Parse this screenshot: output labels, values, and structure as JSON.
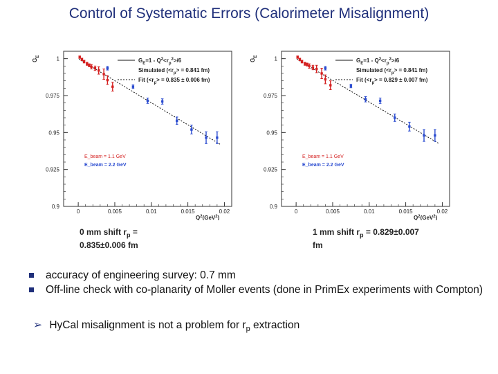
{
  "title": "Control of Systematic Errors (Calorimeter Misalignment)",
  "chart_data": [
    {
      "type": "scatter",
      "ylabel": "G_E^p",
      "xlabel": "Q²(GeV²)",
      "xlim": [
        -0.002,
        0.021
      ],
      "ylim": [
        0.9,
        1.005
      ],
      "xticks": [
        "0",
        "0.005",
        "0.01",
        "0.015",
        "0.02"
      ],
      "yticks": [
        "0.9",
        "0.925",
        "0.95",
        "0.975",
        "1"
      ],
      "legend": [
        "G_E^p=1 - Q²<r_p²>/6",
        "Simulated (<r_p> = 0.841 fm)",
        "Fit (<r_p> = 0.835 ± 0.006 fm)"
      ],
      "beam_labels": [
        "E_beam = 1.1 GeV",
        "E_beam = 2.2 GeV"
      ],
      "fit_rp": 0.835,
      "series": [
        {
          "name": "E_beam = 1.1 GeV",
          "color": "#d42020",
          "x": [
            0.0002,
            0.0005,
            0.0008,
            0.0012,
            0.0015,
            0.0018,
            0.0023,
            0.0028,
            0.0035,
            0.004,
            0.0047
          ],
          "y": [
            1.001,
            0.9995,
            0.998,
            0.9965,
            0.9955,
            0.9945,
            0.9935,
            0.992,
            0.9895,
            0.9855,
            0.981
          ],
          "err": [
            0.0008,
            0.0008,
            0.0009,
            0.001,
            0.001,
            0.0015,
            0.0015,
            0.0025,
            0.0035,
            0.003,
            0.003
          ]
        },
        {
          "name": "E_beam = 2.2 GeV",
          "color": "#2a4bd0",
          "x": [
            0.004,
            0.0075,
            0.0095,
            0.0115,
            0.0135,
            0.0155,
            0.0175,
            0.019
          ],
          "y": [
            0.9935,
            0.981,
            0.9715,
            0.971,
            0.958,
            0.952,
            0.9465,
            0.9465
          ],
          "err": [
            0.0012,
            0.0012,
            0.0018,
            0.0018,
            0.0025,
            0.003,
            0.004,
            0.004
          ]
        }
      ]
    },
    {
      "type": "scatter",
      "ylabel": "G_E^p",
      "xlabel": "Q²(GeV²)",
      "xlim": [
        -0.002,
        0.021
      ],
      "ylim": [
        0.9,
        1.005
      ],
      "xticks": [
        "0",
        "0.005",
        "0.01",
        "0.015",
        "0.02"
      ],
      "yticks": [
        "0.9",
        "0.925",
        "0.95",
        "0.975",
        "1"
      ],
      "legend": [
        "G_E^p=1 - Q²<r_p²>/6",
        "Simulated (<r_p> = 0.841 fm)",
        "Fit (<r_p> = 0.829 ± 0.007 fm)"
      ],
      "beam_labels": [
        "E_beam = 1.1 GeV",
        "E_beam = 2.2 GeV"
      ],
      "fit_rp": 0.829,
      "series": [
        {
          "name": "E_beam = 1.1 GeV",
          "color": "#d42020",
          "x": [
            0.0002,
            0.0005,
            0.0008,
            0.0012,
            0.0015,
            0.0018,
            0.0023,
            0.0028,
            0.0035,
            0.004,
            0.0047
          ],
          "y": [
            1.001,
            0.9995,
            0.998,
            0.9965,
            0.996,
            0.995,
            0.994,
            0.993,
            0.99,
            0.986,
            0.982
          ],
          "err": [
            0.0008,
            0.0008,
            0.0009,
            0.001,
            0.001,
            0.0015,
            0.0015,
            0.0025,
            0.0035,
            0.003,
            0.003
          ]
        },
        {
          "name": "E_beam = 2.2 GeV",
          "color": "#2a4bd0",
          "x": [
            0.004,
            0.0075,
            0.0095,
            0.0115,
            0.0135,
            0.0155,
            0.0175,
            0.019
          ],
          "y": [
            0.9935,
            0.9815,
            0.9725,
            0.9715,
            0.96,
            0.954,
            0.948,
            0.948
          ],
          "err": [
            0.0012,
            0.0012,
            0.0018,
            0.0018,
            0.0025,
            0.003,
            0.004,
            0.004
          ]
        }
      ]
    }
  ],
  "captions": [
    {
      "line1_a": "0 mm shift   r",
      "line1_sub": "p",
      "line1_b": " =",
      "line2": "0.835±0.006 fm"
    },
    {
      "line1_a": "1 mm shift   r",
      "line1_sub": "p",
      "line1_b": " = 0.829±0.007",
      "line2": "fm"
    }
  ],
  "bullets": [
    "accuracy of engineering survey: 0.7 mm",
    "Off-line check with co-planarity of Moller events  (done in PrimEx experiments with Compton)"
  ],
  "conclusion": {
    "text_a": "HyCal misalignment is not a problem for r",
    "sub": "p",
    "text_b": " extraction"
  },
  "colors": {
    "title": "#1f2f7a",
    "red": "#d42020",
    "blue": "#2a4bd0"
  }
}
